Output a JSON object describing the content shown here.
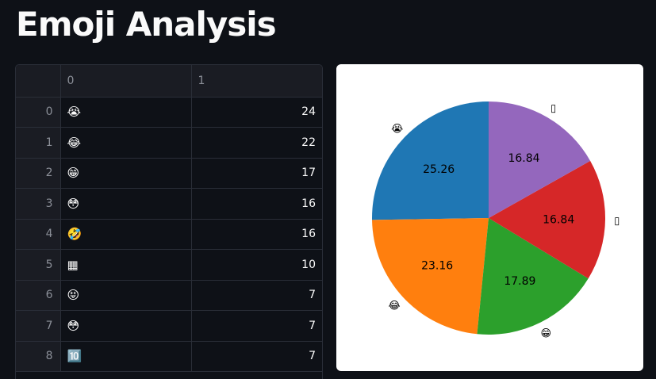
{
  "header": {
    "title": "Emoji Analysis"
  },
  "table": {
    "columns": [
      "",
      "0",
      "1"
    ],
    "rows": [
      {
        "index": "0",
        "emoji": "😭",
        "count": "24"
      },
      {
        "index": "1",
        "emoji": "😂",
        "count": "22"
      },
      {
        "index": "2",
        "emoji": "😁",
        "count": "17"
      },
      {
        "index": "3",
        "emoji": "😳",
        "count": "16"
      },
      {
        "index": "4",
        "emoji": "🤣",
        "count": "16"
      },
      {
        "index": "5",
        "emoji": "▦",
        "count": "10"
      },
      {
        "index": "6",
        "emoji": "😝",
        "count": "7"
      },
      {
        "index": "7",
        "emoji": "😳",
        "count": "7"
      },
      {
        "index": "8",
        "emoji": "🔟",
        "count": "7"
      }
    ]
  },
  "chart_data": {
    "type": "pie",
    "start_angle_deg": 90,
    "direction": "counterclockwise",
    "slices": [
      {
        "label": "😭",
        "value": 25.26,
        "pct_label": "25.26",
        "color": "#1f77b4"
      },
      {
        "label": "😂",
        "value": 23.16,
        "pct_label": "23.16",
        "color": "#ff7f0e"
      },
      {
        "label": "😁",
        "value": 17.89,
        "pct_label": "17.89",
        "color": "#2ca02c"
      },
      {
        "label": "▯",
        "value": 16.84,
        "pct_label": "16.84",
        "color": "#d62728"
      },
      {
        "label": "▯",
        "value": 16.84,
        "pct_label": "16.84",
        "color": "#9467bd"
      }
    ]
  }
}
